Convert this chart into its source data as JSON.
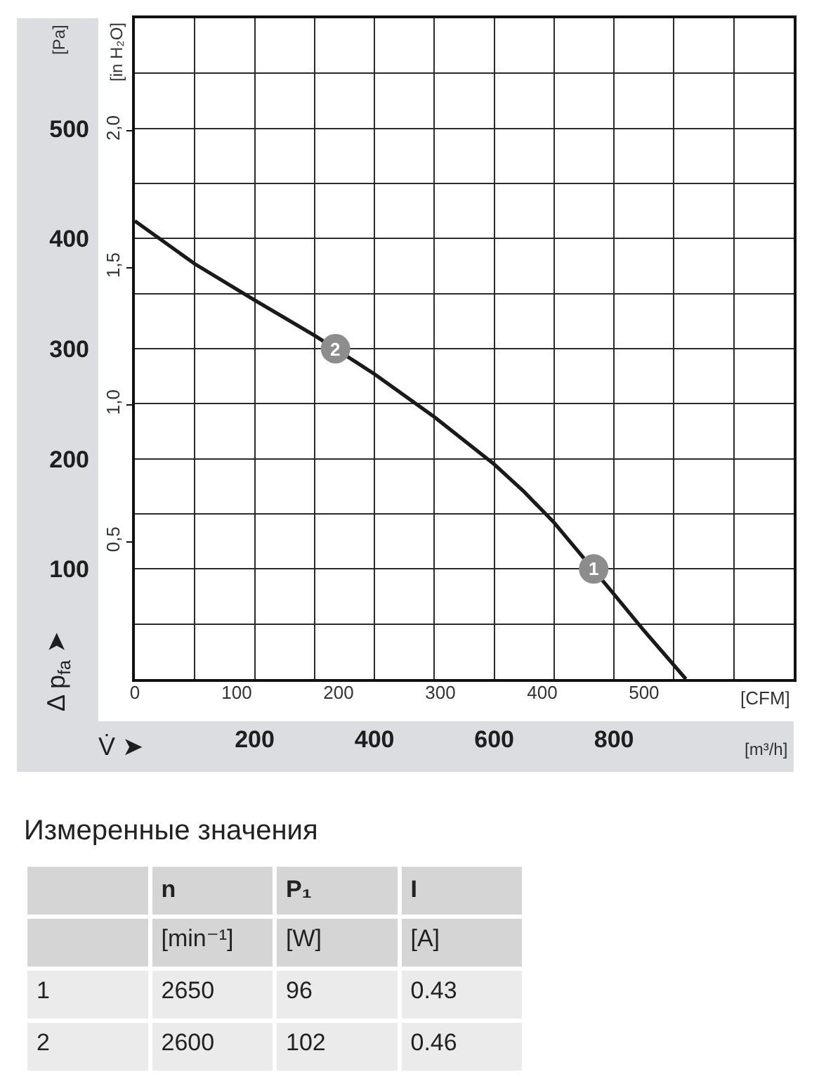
{
  "chart_data": [
    {
      "type": "line",
      "xlabel": "V̇ ➤",
      "ylabel": "Δ p$_{fa}$ ➤",
      "y2label": "[in H₂O]",
      "x2label": "[CFM]",
      "annotations": [
        "[Pa]",
        "[m³/h]",
        {
          "text": "1",
          "x": 766,
          "y": 100
        },
        {
          "text": "2",
          "x": 335,
          "y": 300
        }
      ],
      "xlim": [
        0,
        1100
      ],
      "xticks": [
        {
          "value": 100,
          "label": null
        },
        200,
        {
          "value": 300,
          "label": null
        },
        400,
        {
          "value": 500,
          "label": null
        },
        600,
        {
          "value": 700,
          "label": null
        },
        800,
        {
          "value": 900,
          "label": null
        },
        {
          "value": 1000,
          "label": null
        }
      ],
      "x2lim": [
        0,
        647
      ],
      "x2ticks": [
        0,
        100,
        200,
        300,
        400,
        500
      ],
      "ylim": [
        0,
        600
      ],
      "yticks": [
        {
          "value": 50,
          "label": null
        },
        100,
        {
          "value": 150,
          "label": null
        },
        200,
        {
          "value": 250,
          "label": null
        },
        300,
        {
          "value": 350,
          "label": null
        },
        400,
        {
          "value": 450,
          "label": null
        },
        500,
        {
          "value": 550,
          "label": null
        }
      ],
      "y2lim": [
        0,
        2.41
      ],
      "y2ticks": [
        {
          "value": 0.5,
          "label": "0,5"
        },
        {
          "value": 1.0,
          "label": "1,0"
        },
        {
          "value": 1.5,
          "label": "1,5"
        },
        {
          "value": 2.0,
          "label": "2,0"
        }
      ],
      "grid": true,
      "series": [
        {
          "type": "line",
          "color": "#1a1a1a",
          "x": [
            0,
            100,
            200,
            300,
            400,
            500,
            600,
            650,
            700,
            800,
            850,
            920
          ],
          "values": [
            416,
            377,
            344,
            312,
            277,
            238,
            195,
            170,
            142,
            77,
            44,
            0
          ]
        },
        {
          "type": "scatter",
          "color": "#8d8d8d",
          "marker": "circle",
          "x": [
            766,
            335
          ],
          "values": [
            100,
            300
          ]
        }
      ]
    },
    {
      "type": "other",
      "title": "Измеренные значения",
      "categories": [
        "n",
        "P₁",
        "I"
      ],
      "y_categories": [
        null,
        "1",
        "2"
      ],
      "cell_labels": [
        [
          "[min⁻¹]",
          "[W]",
          "[A]"
        ],
        [
          "2650",
          "96",
          "0.43"
        ],
        [
          "2600",
          "102",
          "0.46"
        ]
      ]
    }
  ]
}
